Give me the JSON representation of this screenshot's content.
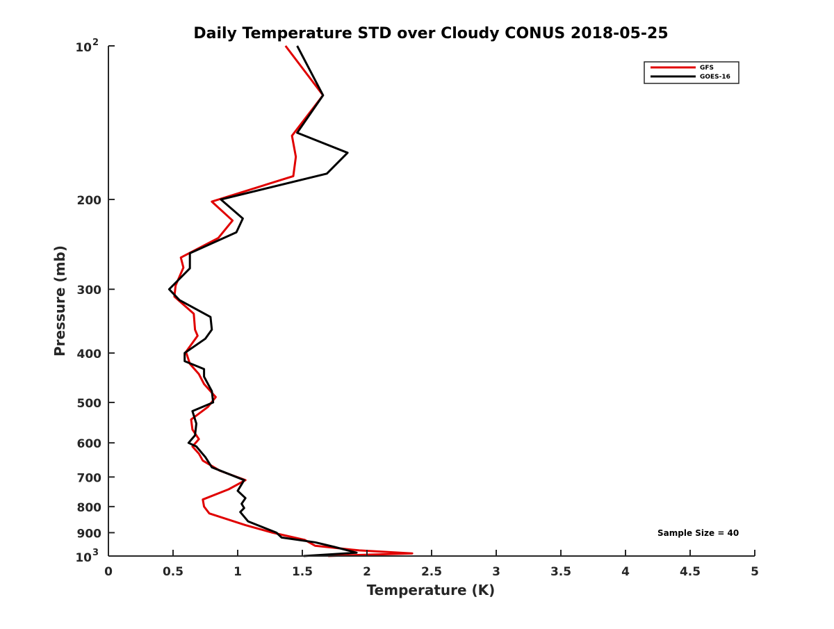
{
  "chart_data": {
    "type": "line",
    "title": "Daily Temperature STD over Cloudy CONUS 2018-05-25",
    "xlabel": "Temperature (K)",
    "ylabel": "Pressure (mb)",
    "xlim": [
      0,
      5
    ],
    "ylim": [
      100,
      1000
    ],
    "yscale": "log",
    "y_reversed": true,
    "grid": false,
    "legend_position": "top-right",
    "x_ticks": [
      0,
      0.5,
      1,
      1.5,
      2,
      2.5,
      3,
      3.5,
      4,
      4.5,
      5
    ],
    "x_tick_labels": [
      "0",
      "0.5",
      "1",
      "1.5",
      "2",
      "2.5",
      "3",
      "3.5",
      "4",
      "4.5",
      "5"
    ],
    "y_ticks": [
      100,
      200,
      300,
      400,
      500,
      600,
      700,
      800,
      900,
      1000
    ],
    "y_tick_labels": [
      {
        "base": "10",
        "exp": "2"
      },
      {
        "base": "200",
        "exp": ""
      },
      {
        "base": "300",
        "exp": ""
      },
      {
        "base": "400",
        "exp": ""
      },
      {
        "base": "500",
        "exp": ""
      },
      {
        "base": "600",
        "exp": ""
      },
      {
        "base": "700",
        "exp": ""
      },
      {
        "base": "800",
        "exp": ""
      },
      {
        "base": "900",
        "exp": ""
      },
      {
        "base": "10",
        "exp": "3"
      }
    ],
    "annotation": "Sample Size = 40",
    "series": [
      {
        "name": "GFS",
        "color": "#e00000",
        "points": [
          [
            1.37,
            100
          ],
          [
            1.66,
            125
          ],
          [
            1.42,
            150
          ],
          [
            1.45,
            165
          ],
          [
            1.43,
            180
          ],
          [
            0.8,
            202
          ],
          [
            0.96,
            220
          ],
          [
            0.85,
            238
          ],
          [
            0.56,
            260
          ],
          [
            0.58,
            272
          ],
          [
            0.52,
            295
          ],
          [
            0.51,
            310
          ],
          [
            0.66,
            335
          ],
          [
            0.67,
            360
          ],
          [
            0.69,
            370
          ],
          [
            0.6,
            398
          ],
          [
            0.63,
            420
          ],
          [
            0.7,
            440
          ],
          [
            0.74,
            460
          ],
          [
            0.83,
            488
          ],
          [
            0.77,
            510
          ],
          [
            0.64,
            540
          ],
          [
            0.65,
            565
          ],
          [
            0.7,
            590
          ],
          [
            0.65,
            610
          ],
          [
            0.7,
            630
          ],
          [
            0.73,
            650
          ],
          [
            0.86,
            680
          ],
          [
            1.06,
            710
          ],
          [
            0.93,
            740
          ],
          [
            0.73,
            775
          ],
          [
            0.74,
            800
          ],
          [
            0.78,
            825
          ],
          [
            1.06,
            870
          ],
          [
            1.27,
            900
          ],
          [
            1.52,
            930
          ],
          [
            1.6,
            955
          ],
          [
            1.94,
            975
          ],
          [
            2.35,
            988
          ],
          [
            2.0,
            994
          ],
          [
            1.7,
            1000
          ]
        ]
      },
      {
        "name": "GOES-16",
        "color": "#000000",
        "points": [
          [
            1.46,
            100
          ],
          [
            1.66,
            125
          ],
          [
            1.46,
            148
          ],
          [
            1.85,
            162
          ],
          [
            1.69,
            178
          ],
          [
            0.87,
            200
          ],
          [
            1.04,
            218
          ],
          [
            0.99,
            232
          ],
          [
            0.63,
            255
          ],
          [
            0.63,
            273
          ],
          [
            0.47,
            300
          ],
          [
            0.55,
            315
          ],
          [
            0.79,
            340
          ],
          [
            0.8,
            360
          ],
          [
            0.75,
            375
          ],
          [
            0.59,
            400
          ],
          [
            0.59,
            415
          ],
          [
            0.74,
            430
          ],
          [
            0.74,
            445
          ],
          [
            0.8,
            475
          ],
          [
            0.81,
            500
          ],
          [
            0.65,
            520
          ],
          [
            0.68,
            550
          ],
          [
            0.67,
            580
          ],
          [
            0.62,
            600
          ],
          [
            0.68,
            610
          ],
          [
            0.75,
            640
          ],
          [
            0.8,
            670
          ],
          [
            1.05,
            710
          ],
          [
            1.0,
            745
          ],
          [
            1.06,
            770
          ],
          [
            1.03,
            790
          ],
          [
            1.05,
            805
          ],
          [
            1.02,
            820
          ],
          [
            1.08,
            855
          ],
          [
            1.3,
            900
          ],
          [
            1.34,
            920
          ],
          [
            1.6,
            940
          ],
          [
            1.75,
            960
          ],
          [
            1.92,
            985
          ],
          [
            1.51,
            1000
          ]
        ]
      }
    ]
  }
}
